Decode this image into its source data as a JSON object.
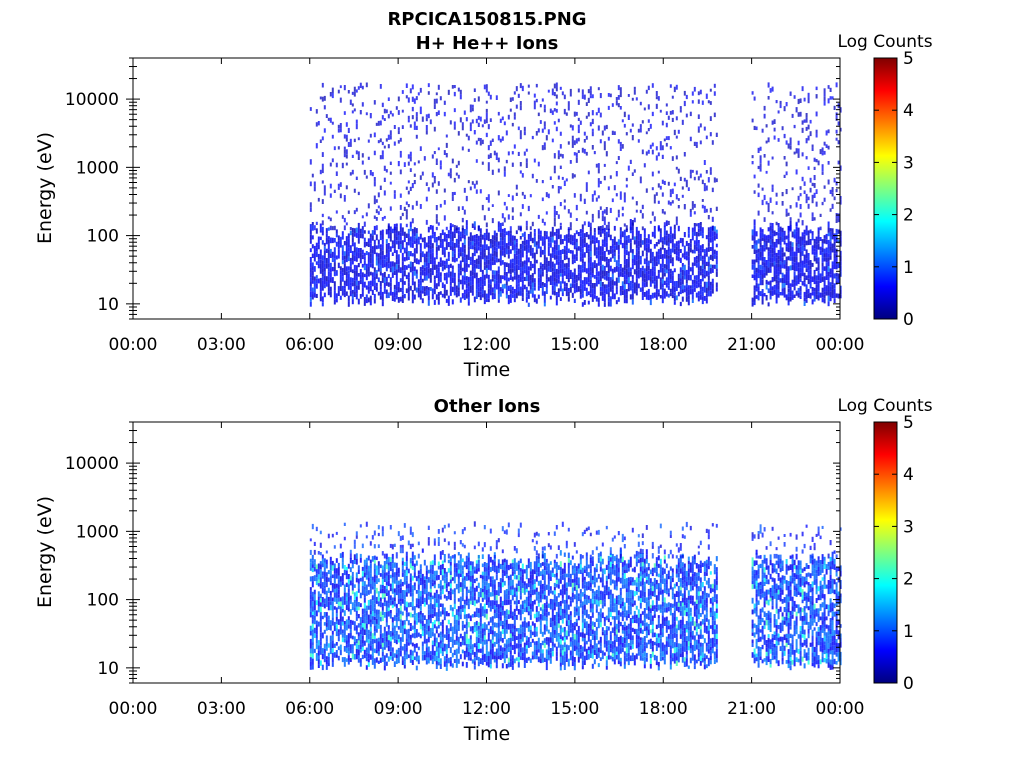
{
  "figure": {
    "title_line1": "RPCICA150815.PNG",
    "title_line2": "H+ He++ Ions"
  },
  "colormap": [
    "#00007f",
    "#0000ff",
    "#007fff",
    "#00ffff",
    "#7fff7f",
    "#ffff00",
    "#ff7f00",
    "#ff0000",
    "#7f0000"
  ],
  "chart_data": [
    {
      "type": "heatmap",
      "title": "H+ He++ Ions",
      "xlabel": "Time",
      "ylabel": "Energy (eV)",
      "x_ticks": [
        "00:00",
        "03:00",
        "06:00",
        "09:00",
        "12:00",
        "15:00",
        "18:00",
        "21:00",
        "00:00"
      ],
      "x_range_hours": [
        0,
        24
      ],
      "y_scale": "log",
      "y_range": [
        6,
        40000
      ],
      "y_ticks": [
        "10",
        "100",
        "1000",
        "10000"
      ],
      "colorbar": {
        "label": "Log Counts",
        "range": [
          0,
          5
        ],
        "ticks": [
          "0",
          "1",
          "2",
          "3",
          "4",
          "5"
        ]
      },
      "data_intervals_hours": [
        [
          6.0,
          19.85
        ],
        [
          21.0,
          24.0
        ]
      ],
      "typical_log_counts": 0.6,
      "peak_log_counts": 1.0,
      "dense_energy_band_eV": [
        15,
        120
      ],
      "sparse_energy_extent_eV": [
        120,
        15000
      ]
    },
    {
      "type": "heatmap",
      "title": "Other Ions",
      "xlabel": "Time",
      "ylabel": "Energy (eV)",
      "x_ticks": [
        "00:00",
        "03:00",
        "06:00",
        "09:00",
        "12:00",
        "15:00",
        "18:00",
        "21:00",
        "00:00"
      ],
      "x_range_hours": [
        0,
        24
      ],
      "y_scale": "log",
      "y_range": [
        6,
        40000
      ],
      "y_ticks": [
        "10",
        "100",
        "1000",
        "10000"
      ],
      "colorbar": {
        "label": "Log Counts",
        "range": [
          0,
          5
        ],
        "ticks": [
          "0",
          "1",
          "2",
          "3",
          "4",
          "5"
        ]
      },
      "data_intervals_hours": [
        [
          6.0,
          19.85
        ],
        [
          21.0,
          24.0
        ]
      ],
      "typical_log_counts": 1.0,
      "peak_log_counts": 2.0,
      "dense_energy_band_eV": [
        15,
        400
      ],
      "sparse_energy_extent_eV": [
        400,
        1200
      ]
    }
  ]
}
